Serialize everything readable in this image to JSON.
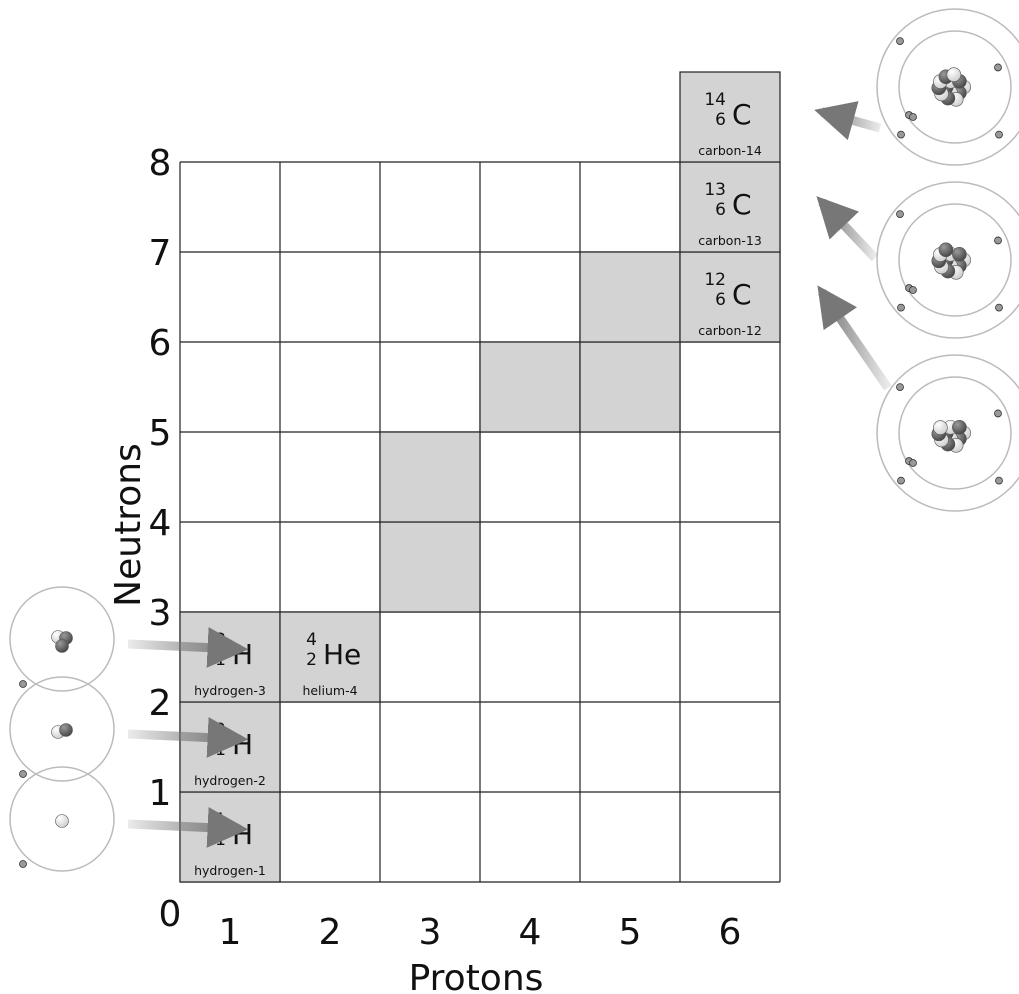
{
  "axes": {
    "x_title": "Protons",
    "y_title": "Neutrons",
    "x_ticks": [
      "0",
      "1",
      "2",
      "3",
      "4",
      "5",
      "6"
    ],
    "y_ticks": [
      "1",
      "2",
      "3",
      "4",
      "5",
      "6",
      "7",
      "8"
    ],
    "grid": {
      "protons_max": 6,
      "neutrons_max": 8
    }
  },
  "highlighted_cells": [
    {
      "protons": 1,
      "neutrons": 0
    },
    {
      "protons": 1,
      "neutrons": 1
    },
    {
      "protons": 1,
      "neutrons": 2
    },
    {
      "protons": 2,
      "neutrons": 2
    },
    {
      "protons": 3,
      "neutrons": 3
    },
    {
      "protons": 3,
      "neutrons": 4
    },
    {
      "protons": 4,
      "neutrons": 5
    },
    {
      "protons": 5,
      "neutrons": 5
    },
    {
      "protons": 5,
      "neutrons": 6
    },
    {
      "protons": 6,
      "neutrons": 6
    },
    {
      "protons": 6,
      "neutrons": 7
    },
    {
      "protons": 6,
      "neutrons": 8
    }
  ],
  "isotopes": [
    {
      "id": "h1",
      "protons": 1,
      "neutrons": 0,
      "mass": "1",
      "atomic": "1",
      "symbol": "H",
      "name": "hydrogen-1"
    },
    {
      "id": "h2",
      "protons": 1,
      "neutrons": 1,
      "mass": "2",
      "atomic": "1",
      "symbol": "H",
      "name": "hydrogen-2"
    },
    {
      "id": "h3",
      "protons": 1,
      "neutrons": 2,
      "mass": "3",
      "atomic": "1",
      "symbol": "H",
      "name": "hydrogen-3"
    },
    {
      "id": "he4",
      "protons": 2,
      "neutrons": 2,
      "mass": "4",
      "atomic": "2",
      "symbol": "He",
      "name": "helium-4"
    },
    {
      "id": "c12",
      "protons": 6,
      "neutrons": 6,
      "mass": "12",
      "atomic": "6",
      "symbol": "C",
      "name": "carbon-12"
    },
    {
      "id": "c13",
      "protons": 6,
      "neutrons": 7,
      "mass": "13",
      "atomic": "6",
      "symbol": "C",
      "name": "carbon-13"
    },
    {
      "id": "c14",
      "protons": 6,
      "neutrons": 8,
      "mass": "14",
      "atomic": "6",
      "symbol": "C",
      "name": "carbon-14"
    }
  ],
  "atom_illustrations": [
    {
      "isotope": "h1",
      "side": "left",
      "protons": 1,
      "neutrons": 0
    },
    {
      "isotope": "h2",
      "side": "left",
      "protons": 1,
      "neutrons": 1
    },
    {
      "isotope": "h3",
      "side": "left",
      "protons": 1,
      "neutrons": 2
    },
    {
      "isotope": "c12",
      "side": "right",
      "protons": 6,
      "neutrons": 6
    },
    {
      "isotope": "c13",
      "side": "right",
      "protons": 6,
      "neutrons": 7
    },
    {
      "isotope": "c14",
      "side": "right",
      "protons": 6,
      "neutrons": 8
    }
  ],
  "colors": {
    "cell_fill": "#d3d3d3",
    "grid_line": "#222222",
    "arrow": "#777777",
    "orbit": "#bbbbbb",
    "nucleon_dark": "#4a4a4a",
    "nucleon_light": "#cfcfcf"
  }
}
